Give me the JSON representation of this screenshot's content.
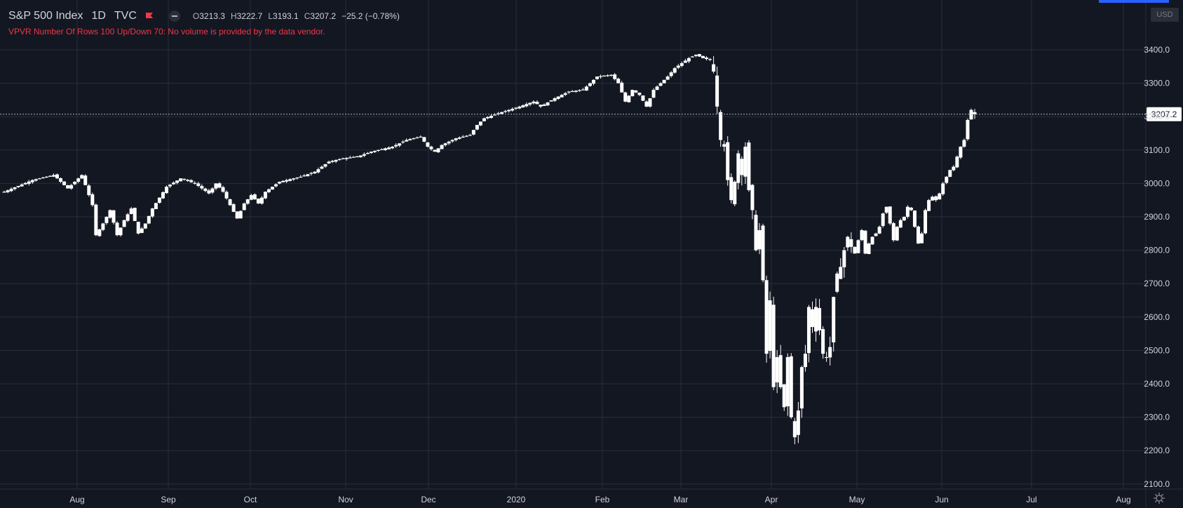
{
  "header": {
    "symbol": "S&P 500 Index",
    "interval": "1D",
    "exchange": "TVC",
    "ohlc": {
      "open_label": "O",
      "open": "3213.3",
      "high_label": "H",
      "high": "3222.7",
      "low_label": "L",
      "low": "3193.1",
      "close_label": "C",
      "close": "3207.2",
      "change": "−25.2 (−0.78%)"
    },
    "flag_color": "#f23645"
  },
  "notice": "VPVR Number Of Rows 100 Up/Down 70: No volume is provided by the data vendor.",
  "currency": "USD",
  "last_price_label": "3207.2",
  "colors": {
    "background": "#131722",
    "grid": "#2a2e39",
    "candle": "#ffffff",
    "text": "#d1d4dc",
    "notice": "#f23645",
    "accent": "#2962ff"
  },
  "icons": [
    "flag-icon",
    "collapse-toggle-icon",
    "gear-icon"
  ],
  "chart_data": {
    "type": "candlestick",
    "title": "S&P 500 Index",
    "interval": "1D",
    "x_tick_labels": [
      "Aug",
      "Sep",
      "Oct",
      "Nov",
      "Dec",
      "2020",
      "Feb",
      "Mar",
      "Apr",
      "May",
      "Jun",
      "Jul",
      "Aug"
    ],
    "y_tick_labels": [
      "3400.0",
      "3300.0",
      "3200.0",
      "3100.0",
      "3000.0",
      "2900.0",
      "2800.0",
      "2700.0",
      "2600.0",
      "2500.0",
      "2400.0",
      "2300.0",
      "2200.0",
      "2100.0"
    ],
    "ylim": [
      2070,
      3460
    ],
    "last_price": 3207.2,
    "grid": true,
    "close_path": [
      [
        0,
        2975
      ],
      [
        8,
        3010
      ],
      [
        14,
        3025
      ],
      [
        18,
        2985
      ],
      [
        22,
        3025
      ],
      [
        25,
        2935
      ],
      [
        26,
        2845
      ],
      [
        28,
        2880
      ],
      [
        30,
        2920
      ],
      [
        32,
        2845
      ],
      [
        34,
        2890
      ],
      [
        36,
        2925
      ],
      [
        38,
        2850
      ],
      [
        40,
        2880
      ],
      [
        42,
        2925
      ],
      [
        46,
        2990
      ],
      [
        50,
        3015
      ],
      [
        54,
        3000
      ],
      [
        58,
        2970
      ],
      [
        60,
        3000
      ],
      [
        62,
        2975
      ],
      [
        64,
        2935
      ],
      [
        66,
        2895
      ],
      [
        68,
        2940
      ],
      [
        70,
        2965
      ],
      [
        72,
        2940
      ],
      [
        74,
        2975
      ],
      [
        78,
        3005
      ],
      [
        84,
        3020
      ],
      [
        88,
        3035
      ],
      [
        92,
        3065
      ],
      [
        96,
        3075
      ],
      [
        100,
        3080
      ],
      [
        104,
        3095
      ],
      [
        110,
        3110
      ],
      [
        114,
        3130
      ],
      [
        118,
        3140
      ],
      [
        120,
        3110
      ],
      [
        122,
        3095
      ],
      [
        124,
        3115
      ],
      [
        128,
        3135
      ],
      [
        132,
        3145
      ],
      [
        134,
        3175
      ],
      [
        136,
        3195
      ],
      [
        140,
        3210
      ],
      [
        146,
        3230
      ],
      [
        150,
        3245
      ],
      [
        152,
        3230
      ],
      [
        156,
        3255
      ],
      [
        160,
        3275
      ],
      [
        164,
        3280
      ],
      [
        168,
        3320
      ],
      [
        172,
        3325
      ],
      [
        174,
        3300
      ],
      [
        176,
        3245
      ],
      [
        178,
        3280
      ],
      [
        180,
        3265
      ],
      [
        182,
        3230
      ],
      [
        184,
        3280
      ],
      [
        186,
        3300
      ],
      [
        188,
        3320
      ],
      [
        190,
        3345
      ],
      [
        194,
        3375
      ],
      [
        196,
        3385
      ],
      [
        198,
        3375
      ],
      [
        200,
        3370
      ],
      [
        201,
        3335
      ],
      [
        202,
        3230
      ],
      [
        203,
        3130
      ],
      [
        204,
        3110
      ],
      [
        205,
        3010
      ],
      [
        206,
        2950
      ],
      [
        207,
        3005
      ],
      [
        208,
        3090
      ],
      [
        209,
        3025
      ],
      [
        210,
        3110
      ],
      [
        211,
        2980
      ],
      [
        212,
        2920
      ],
      [
        213,
        2800
      ],
      [
        214,
        2860
      ],
      [
        215,
        2710
      ],
      [
        216,
        2490
      ],
      [
        217,
        2650
      ],
      [
        218,
        2390
      ],
      [
        219,
        2480
      ],
      [
        220,
        2390
      ],
      [
        221,
        2330
      ],
      [
        222,
        2480
      ],
      [
        223,
        2300
      ],
      [
        224,
        2240
      ],
      [
        225,
        2320
      ],
      [
        226,
        2450
      ],
      [
        227,
        2490
      ],
      [
        228,
        2630
      ],
      [
        229,
        2570
      ],
      [
        230,
        2630
      ],
      [
        231,
        2560
      ],
      [
        232,
        2490
      ],
      [
        233,
        2480
      ],
      [
        234,
        2510
      ],
      [
        235,
        2660
      ],
      [
        236,
        2730
      ],
      [
        237,
        2750
      ],
      [
        238,
        2800
      ],
      [
        239,
        2840
      ],
      [
        240,
        2810
      ],
      [
        241,
        2790
      ],
      [
        242,
        2830
      ],
      [
        243,
        2860
      ],
      [
        244,
        2790
      ],
      [
        245,
        2820
      ],
      [
        246,
        2840
      ],
      [
        247,
        2850
      ],
      [
        248,
        2870
      ],
      [
        249,
        2910
      ],
      [
        250,
        2930
      ],
      [
        251,
        2880
      ],
      [
        252,
        2830
      ],
      [
        253,
        2870
      ],
      [
        254,
        2890
      ],
      [
        255,
        2900
      ],
      [
        256,
        2930
      ],
      [
        257,
        2920
      ],
      [
        258,
        2870
      ],
      [
        259,
        2820
      ],
      [
        260,
        2850
      ],
      [
        261,
        2920
      ],
      [
        262,
        2950
      ],
      [
        263,
        2960
      ],
      [
        264,
        2950
      ],
      [
        265,
        2970
      ],
      [
        266,
        3000
      ],
      [
        267,
        3020
      ],
      [
        268,
        3040
      ],
      [
        269,
        3050
      ],
      [
        270,
        3080
      ],
      [
        271,
        3110
      ],
      [
        272,
        3130
      ],
      [
        273,
        3190
      ],
      [
        274,
        3220
      ],
      [
        275,
        3207
      ]
    ]
  }
}
